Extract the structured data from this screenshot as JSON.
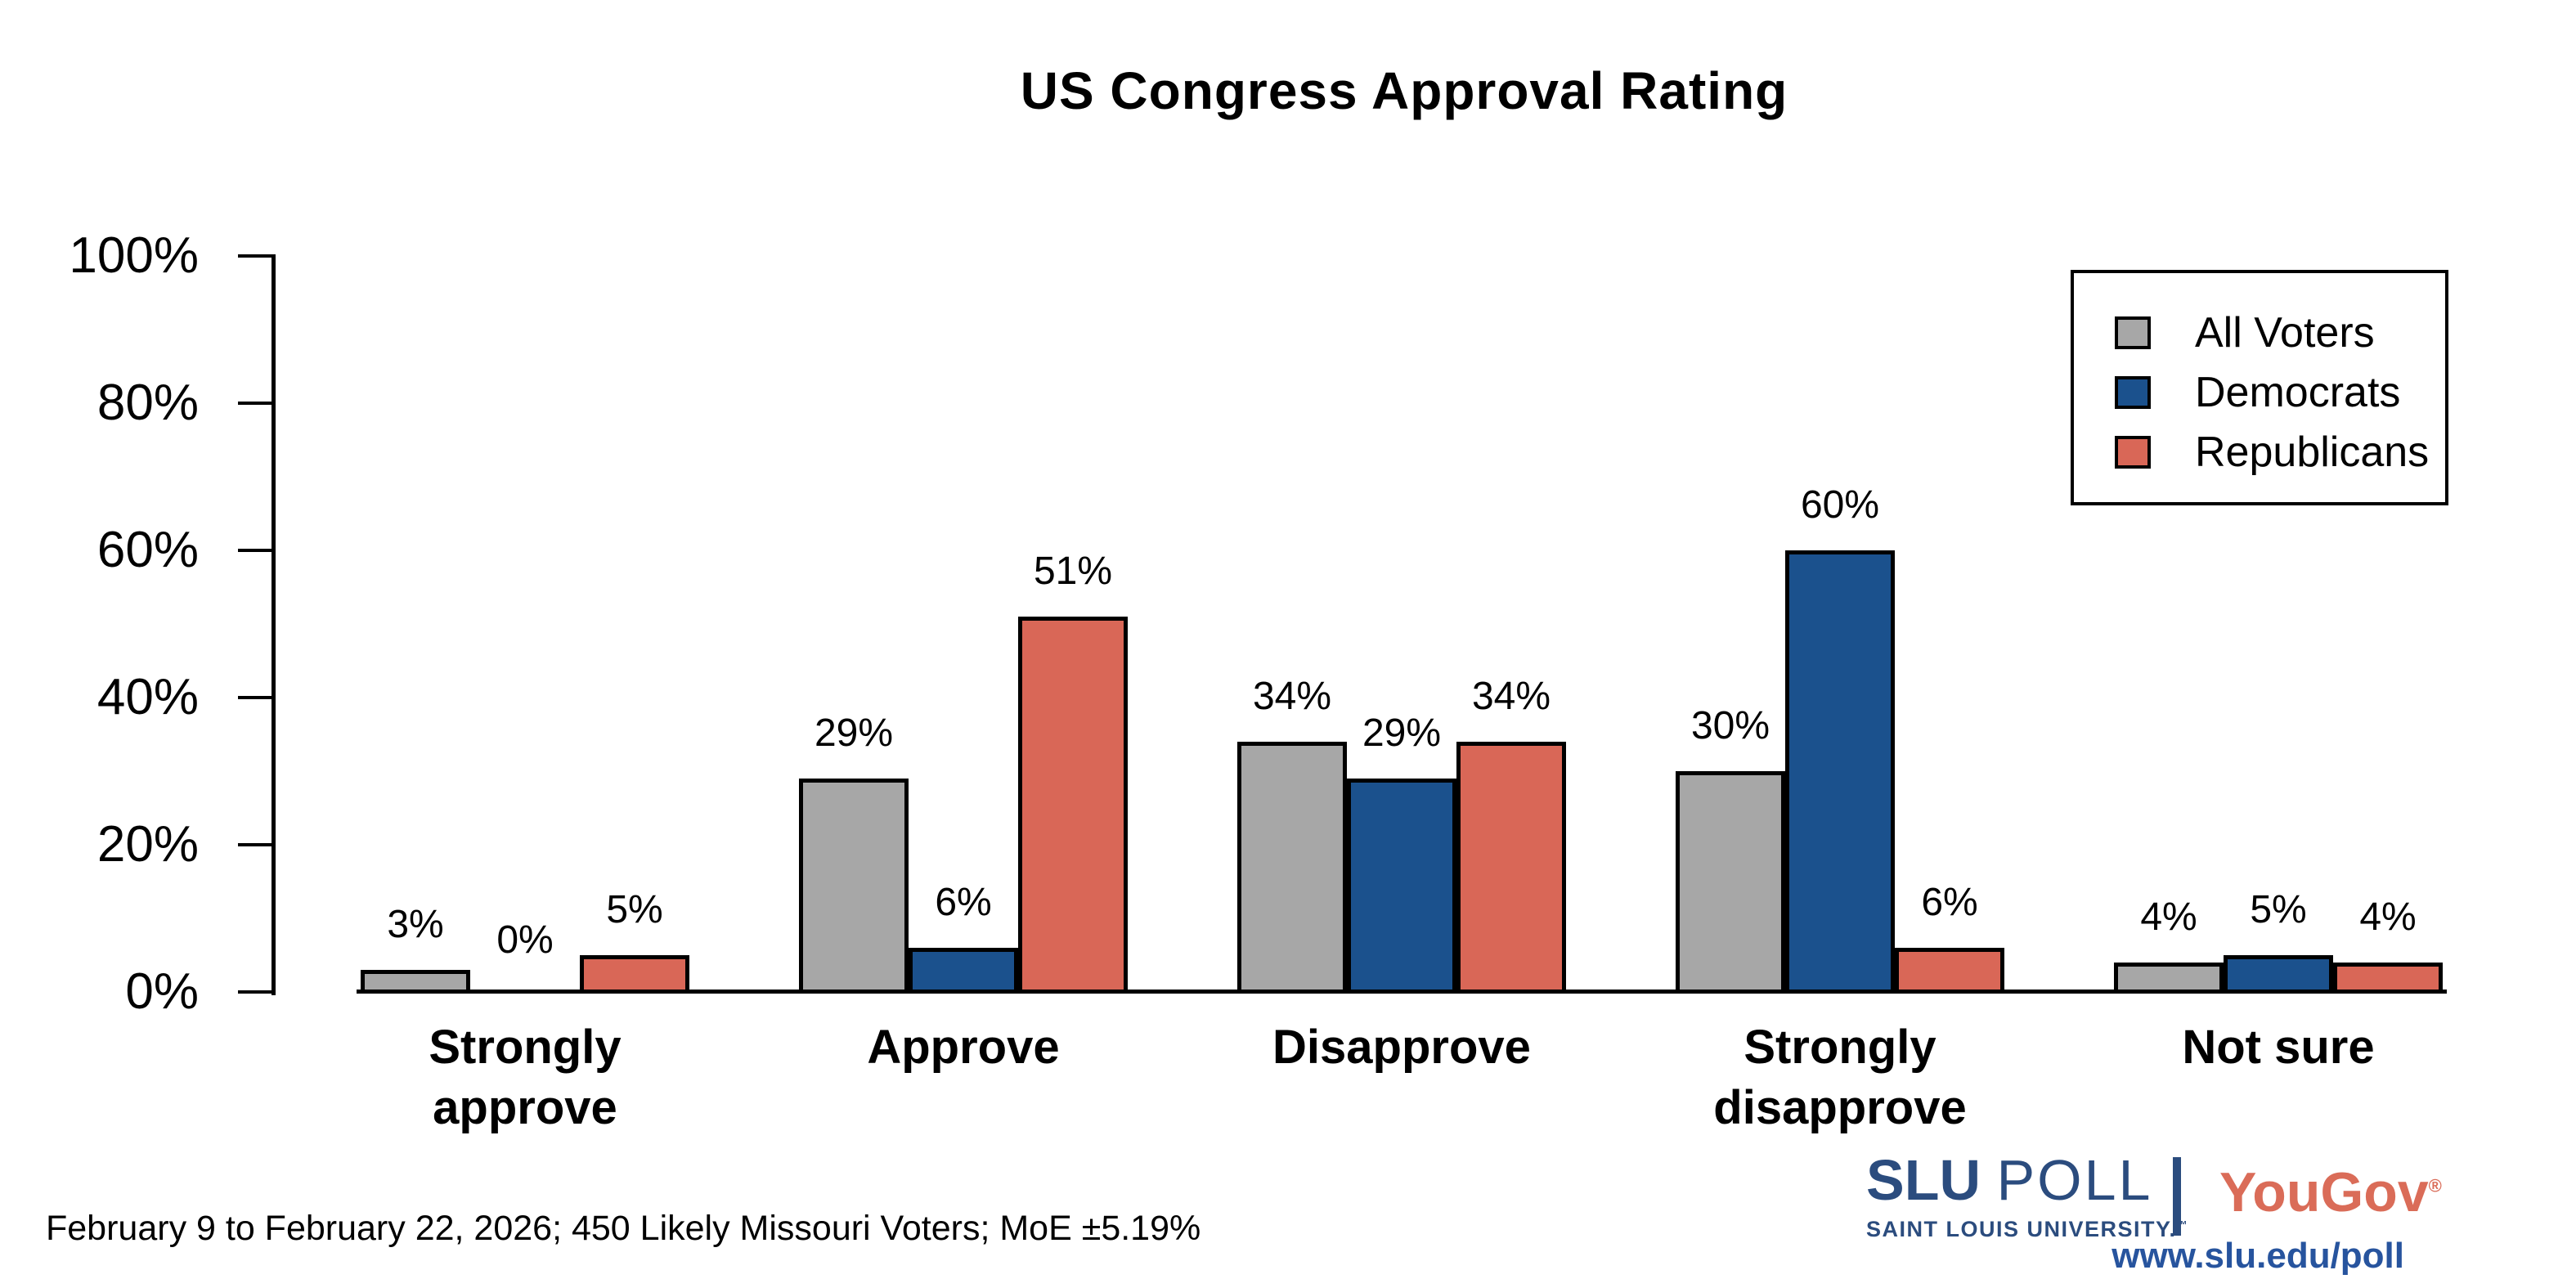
{
  "title": "US Congress Approval Rating",
  "footer_note": "February 9 to February 22, 2026; 450 Likely Missouri Voters; MoE ±5.19%",
  "branding": {
    "slu_name_bold": "SLU",
    "slu_name_light": "POLL",
    "slu_sub": "SAINT LOUIS UNIVERSITY.",
    "slu_tm": "™",
    "yougov_name": "YouGov",
    "yougov_reg": "®",
    "url": "www.slu.edu/poll",
    "slu_navy": "#2B4C7E",
    "url_blue": "#27549E",
    "yougov_coral": "#DA6C58"
  },
  "chart_data": {
    "type": "bar",
    "title": "US Congress Approval Rating",
    "categories": [
      "Strongly approve",
      "Approve",
      "Disapprove",
      "Strongly disapprove",
      "Not sure"
    ],
    "series": [
      {
        "name": "All Voters",
        "color": "#A7A7A7",
        "values": [
          3,
          29,
          34,
          30,
          4
        ]
      },
      {
        "name": "Democrats",
        "color": "#1B518D",
        "values": [
          0,
          6,
          29,
          60,
          5
        ]
      },
      {
        "name": "Republicans",
        "color": "#D96757",
        "values": [
          5,
          51,
          34,
          6,
          4
        ]
      }
    ],
    "xlabel": "",
    "ylabel": "",
    "ylim": [
      0,
      100
    ],
    "ytick_values": [
      0,
      20,
      40,
      60,
      80,
      100
    ],
    "ytick_suffix": "%",
    "value_label_suffix": "%",
    "grid": false,
    "legend_position": "upper right",
    "bar_outline": "#000000",
    "source_note": "February 9 to February 22, 2026; 450 Likely Missouri Voters; MoE ±5.19%"
  }
}
